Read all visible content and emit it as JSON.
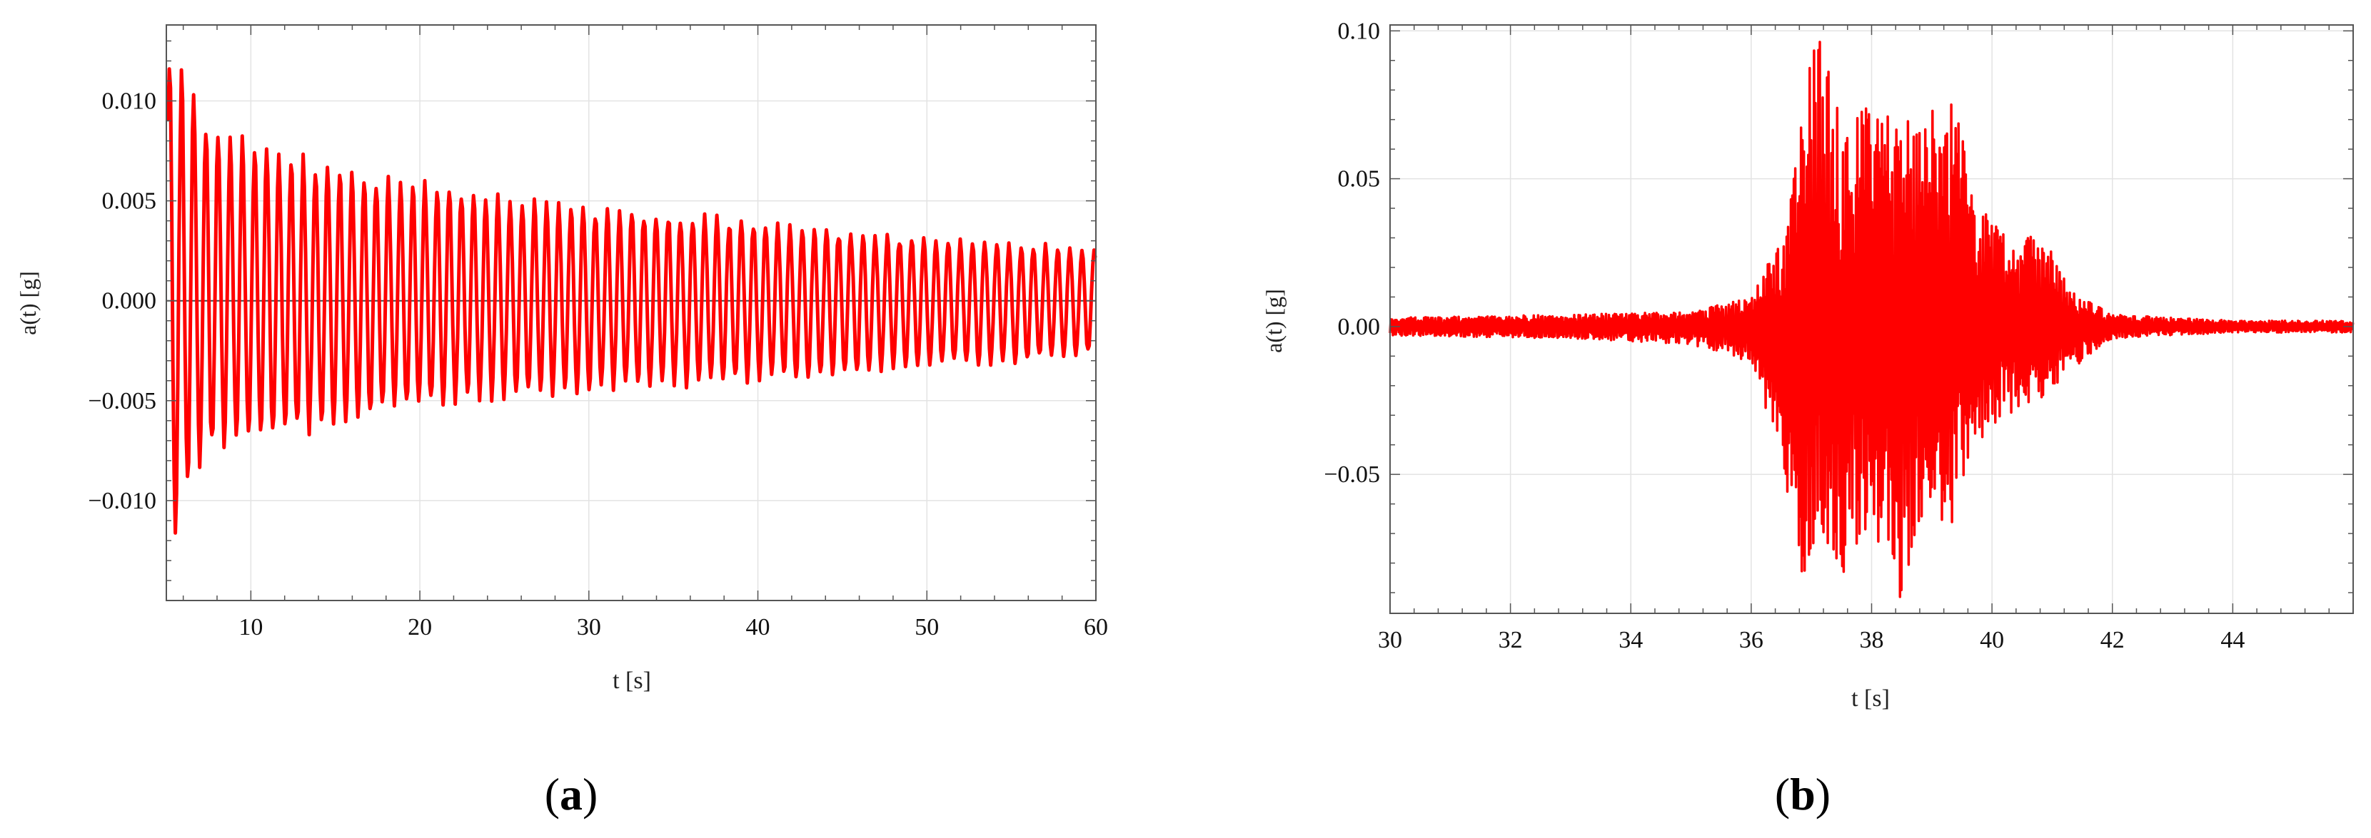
{
  "figure": {
    "panels": [
      {
        "label_open": "(",
        "label_letter": "a",
        "label_close": ")"
      },
      {
        "label_open": "(",
        "label_letter": "b",
        "label_close": ")"
      }
    ]
  },
  "chart_data": [
    {
      "type": "line",
      "xlabel": "t [s]",
      "ylabel": "a(t) [g]",
      "xlim": [
        5,
        60
      ],
      "ylim": [
        -0.015,
        0.0138
      ],
      "xticks": [
        10,
        20,
        30,
        40,
        50,
        60
      ],
      "xtick_labels": [
        "10",
        "20",
        "30",
        "40",
        "50",
        "60"
      ],
      "yticks": [
        -0.01,
        -0.005,
        0.0,
        0.005,
        0.01
      ],
      "ytick_labels": [
        "−0.010",
        "−0.005",
        "0.000",
        "0.005",
        "0.010"
      ],
      "grid": true,
      "series": [
        {
          "color": "#ff0000",
          "description_points": "free-vibration decaying oscillation, envelope peaks (t, +max, -min)",
          "envelope": [
            [
              5.1,
              0.0138,
              -0.015
            ],
            [
              6,
              0.0118,
              -0.01
            ],
            [
              8,
              0.0088,
              -0.0075
            ],
            [
              10,
              0.0082,
              -0.0072
            ],
            [
              15,
              0.007,
              -0.0065
            ],
            [
              20,
              0.0062,
              -0.0055
            ],
            [
              25,
              0.0054,
              -0.005
            ],
            [
              30,
              0.0048,
              -0.0047
            ],
            [
              35,
              0.0046,
              -0.0044
            ],
            [
              40,
              0.004,
              -0.0042
            ],
            [
              45,
              0.0036,
              -0.0038
            ],
            [
              50,
              0.0032,
              -0.0034
            ],
            [
              55,
              0.003,
              -0.0032
            ],
            [
              60,
              0.0027,
              -0.0028
            ]
          ]
        }
      ]
    },
    {
      "type": "line",
      "xlabel": "t [s]",
      "ylabel": "a(t) [g]",
      "xlim": [
        30,
        46
      ],
      "ylim": [
        -0.097,
        0.102
      ],
      "xticks": [
        30,
        32,
        34,
        36,
        38,
        40,
        42,
        44
      ],
      "xtick_labels": [
        "30",
        "32",
        "34",
        "36",
        "38",
        "40",
        "42",
        "44"
      ],
      "yticks": [
        -0.05,
        0.0,
        0.05,
        0.1
      ],
      "ytick_labels": [
        "−0.05",
        "0.00",
        "0.05",
        "0.10"
      ],
      "grid": true,
      "series": [
        {
          "color": "#ff0000",
          "description_points": "seismic-like burst, envelope peaks (t, +max, -min)",
          "envelope": [
            [
              30,
              0.003,
              -0.003
            ],
            [
              33,
              0.004,
              -0.004
            ],
            [
              35,
              0.005,
              -0.006
            ],
            [
              36,
              0.01,
              -0.012
            ],
            [
              36.5,
              0.03,
              -0.045
            ],
            [
              36.9,
              0.08,
              -0.09
            ],
            [
              37.1,
              0.102,
              -0.07
            ],
            [
              37.5,
              0.07,
              -0.085
            ],
            [
              38,
              0.075,
              -0.065
            ],
            [
              38.4,
              0.07,
              -0.097
            ],
            [
              39,
              0.075,
              -0.065
            ],
            [
              39.4,
              0.078,
              -0.068
            ],
            [
              39.7,
              0.045,
              -0.04
            ],
            [
              40.3,
              0.03,
              -0.03
            ],
            [
              40.8,
              0.035,
              -0.025
            ],
            [
              41.3,
              0.012,
              -0.015
            ],
            [
              42,
              0.004,
              -0.004
            ],
            [
              44,
              0.002,
              -0.002
            ],
            [
              46,
              0.002,
              -0.002
            ]
          ]
        }
      ]
    }
  ]
}
